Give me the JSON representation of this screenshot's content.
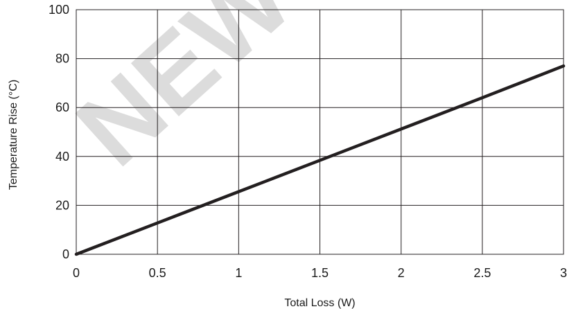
{
  "chart_data": {
    "type": "line",
    "title": "",
    "xlabel": "Total Loss (W)",
    "ylabel": "Temperature Rise (°C)",
    "xlim": [
      0,
      3
    ],
    "ylim": [
      0,
      100
    ],
    "x_ticks": [
      0,
      0.5,
      1,
      1.5,
      2,
      2.5,
      3
    ],
    "x_tick_labels": [
      "0",
      "0.5",
      "1",
      "1.5",
      "2",
      "2.5",
      "3"
    ],
    "y_ticks": [
      0,
      20,
      40,
      60,
      80,
      100
    ],
    "y_tick_labels": [
      "0",
      "20",
      "40",
      "60",
      "80",
      "100"
    ],
    "grid": true,
    "legend": "none",
    "series": [
      {
        "x": [
          0,
          0.5,
          1,
          1.5,
          2,
          2.5,
          3
        ],
        "y": [
          0,
          12.8,
          25.6,
          38.4,
          51.2,
          64.0,
          77.0
        ],
        "color": "#231f20"
      }
    ],
    "watermark_text": "NEW",
    "watermark_color": "#d9d9d9"
  }
}
